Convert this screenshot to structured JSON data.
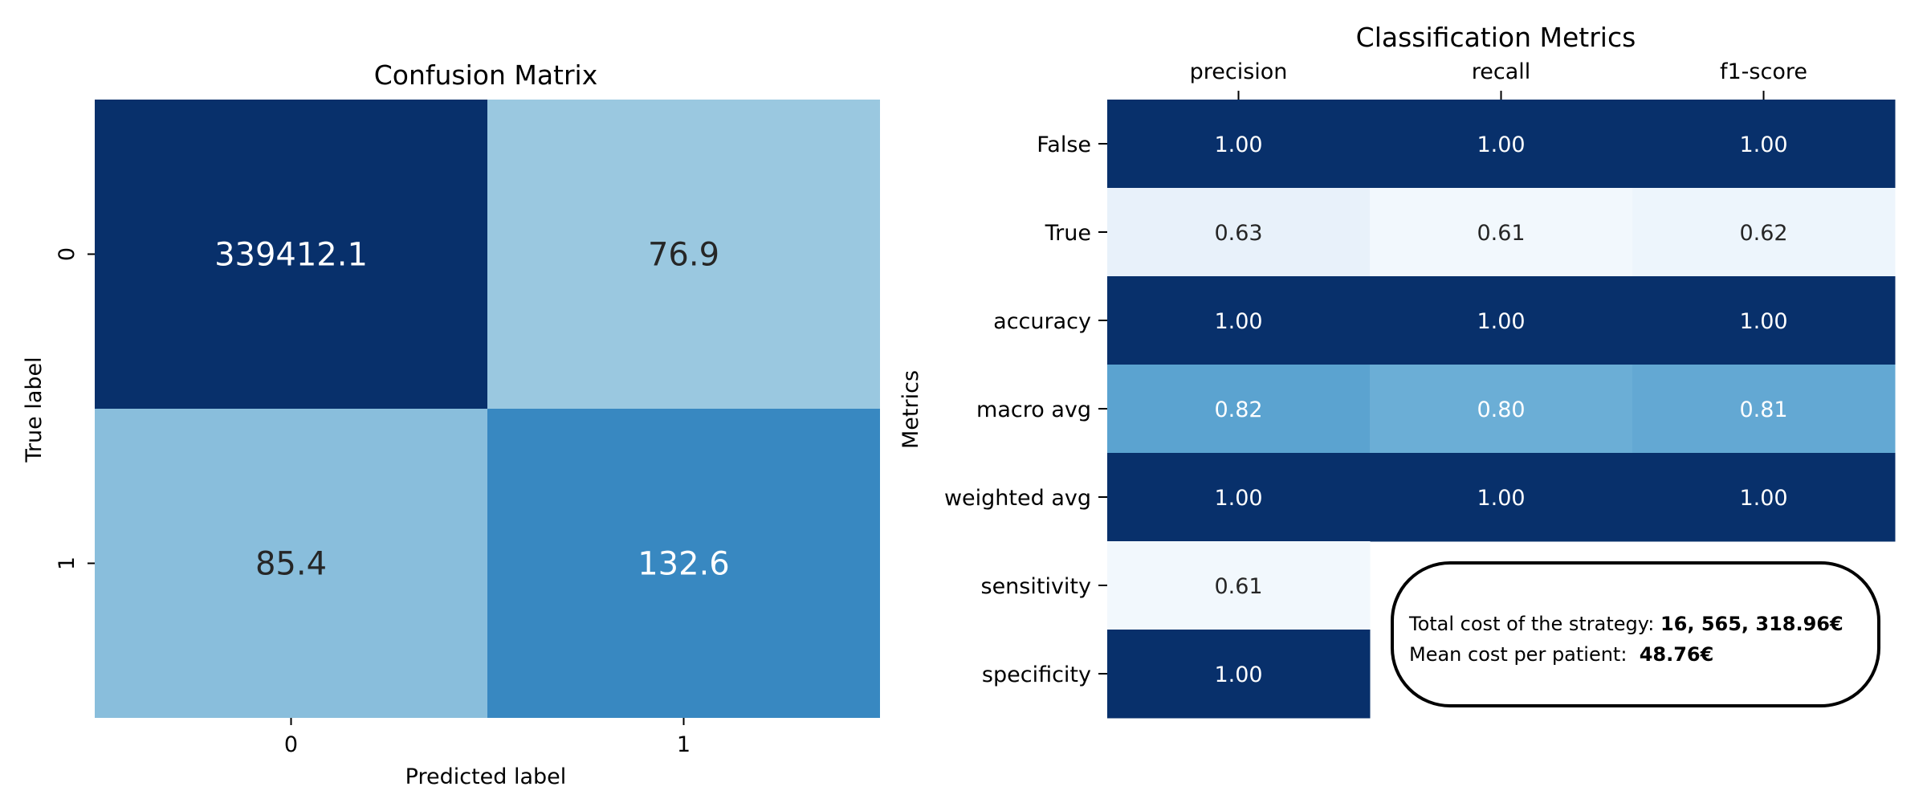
{
  "chart_data": [
    {
      "type": "heatmap",
      "title": "Confusion Matrix",
      "xlabel": "Predicted label",
      "ylabel": "True label",
      "x_categories": [
        "0",
        "1"
      ],
      "y_categories": [
        "0",
        "1"
      ],
      "values": [
        [
          339412.1,
          76.9
        ],
        [
          85.4,
          132.6
        ]
      ],
      "value_labels": [
        [
          "339412.1",
          "76.9"
        ],
        [
          "85.4",
          "132.6"
        ]
      ],
      "colormap": "Blues",
      "color_min": 0,
      "color_max": 200
    },
    {
      "type": "heatmap",
      "title": "Classification Metrics",
      "xlabel": "",
      "ylabel": "Metrics",
      "x_categories": [
        "precision",
        "recall",
        "f1-score"
      ],
      "y_categories": [
        "False",
        "True",
        "accuracy",
        "macro avg",
        "weighted avg",
        "sensitivity",
        "specificity"
      ],
      "values": [
        [
          1.0,
          1.0,
          1.0
        ],
        [
          0.63,
          0.61,
          0.62
        ],
        [
          1.0,
          1.0,
          1.0
        ],
        [
          0.82,
          0.8,
          0.81
        ],
        [
          1.0,
          1.0,
          1.0
        ],
        [
          0.61,
          null,
          null
        ],
        [
          1.0,
          null,
          null
        ]
      ],
      "value_labels": [
        [
          "1.00",
          "1.00",
          "1.00"
        ],
        [
          "0.63",
          "0.61",
          "0.62"
        ],
        [
          "1.00",
          "1.00",
          "1.00"
        ],
        [
          "0.82",
          "0.80",
          "0.81"
        ],
        [
          "1.00",
          "1.00",
          "1.00"
        ],
        [
          "0.61",
          "",
          ""
        ],
        [
          "1.00",
          "",
          ""
        ]
      ],
      "colormap": "Blues",
      "color_min": 0.6,
      "color_max": 1.0
    }
  ],
  "cost_box": {
    "total_label": "Total cost of the strategy: ",
    "total_value": "16, 565, 318.96€",
    "mean_label": "Mean cost per patient:  ",
    "mean_value": "48.76€"
  },
  "colors": {
    "blues_low": "#f7fbff",
    "blues_high": "#08306b",
    "text_dark": "#262626",
    "text_light": "#ffffff"
  }
}
